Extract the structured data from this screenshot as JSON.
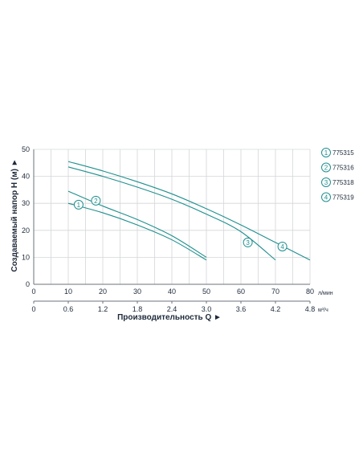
{
  "chart_data": {
    "type": "line",
    "ylabel": "Создаваемый напор H (м) ►",
    "xlabel": "Производительность Q ►",
    "x_unit": "л/мин",
    "x2_unit": "м³/ч",
    "xlim": [
      0,
      80
    ],
    "ylim": [
      0,
      50
    ],
    "x_ticks": [
      "0",
      "10",
      "20",
      "30",
      "40",
      "50",
      "60",
      "70",
      "80"
    ],
    "y_ticks": [
      "0",
      "10",
      "20",
      "30",
      "40",
      "50"
    ],
    "x2_ticks": [
      {
        "label": "0",
        "at": 0
      },
      {
        "label": "0.6",
        "at": 10
      },
      {
        "label": "1.2",
        "at": 20
      },
      {
        "label": "1.8",
        "at": 30
      },
      {
        "label": "2.4",
        "at": 40
      },
      {
        "label": "3.0",
        "at": 50
      },
      {
        "label": "3.6",
        "at": 60
      },
      {
        "label": "4.2",
        "at": 70
      },
      {
        "label": "4.8",
        "at": 80
      }
    ],
    "grid": true,
    "legend_position": "right",
    "line_color": "#1f8f8f",
    "series": [
      {
        "name": "775315",
        "marker": "1",
        "marker_at": [
          13,
          29.5
        ],
        "x": [
          10,
          20,
          30,
          40,
          50
        ],
        "y": [
          30,
          26.5,
          22,
          16.5,
          9
        ]
      },
      {
        "name": "775316",
        "marker": "2",
        "marker_at": [
          18,
          31
        ],
        "x": [
          10,
          20,
          30,
          40,
          50
        ],
        "y": [
          34.5,
          29,
          24,
          18,
          10
        ]
      },
      {
        "name": "775318",
        "marker": "3",
        "marker_at": [
          62,
          15.5
        ],
        "x": [
          10,
          20,
          30,
          40,
          50,
          60,
          70
        ],
        "y": [
          43.5,
          40,
          36,
          31.5,
          26,
          19.5,
          9
        ]
      },
      {
        "name": "775319",
        "marker": "4",
        "marker_at": [
          72,
          14
        ],
        "x": [
          10,
          20,
          30,
          40,
          50,
          60,
          70,
          80
        ],
        "y": [
          45.5,
          42,
          38,
          33.5,
          28,
          22,
          15.5,
          9
        ]
      }
    ]
  }
}
